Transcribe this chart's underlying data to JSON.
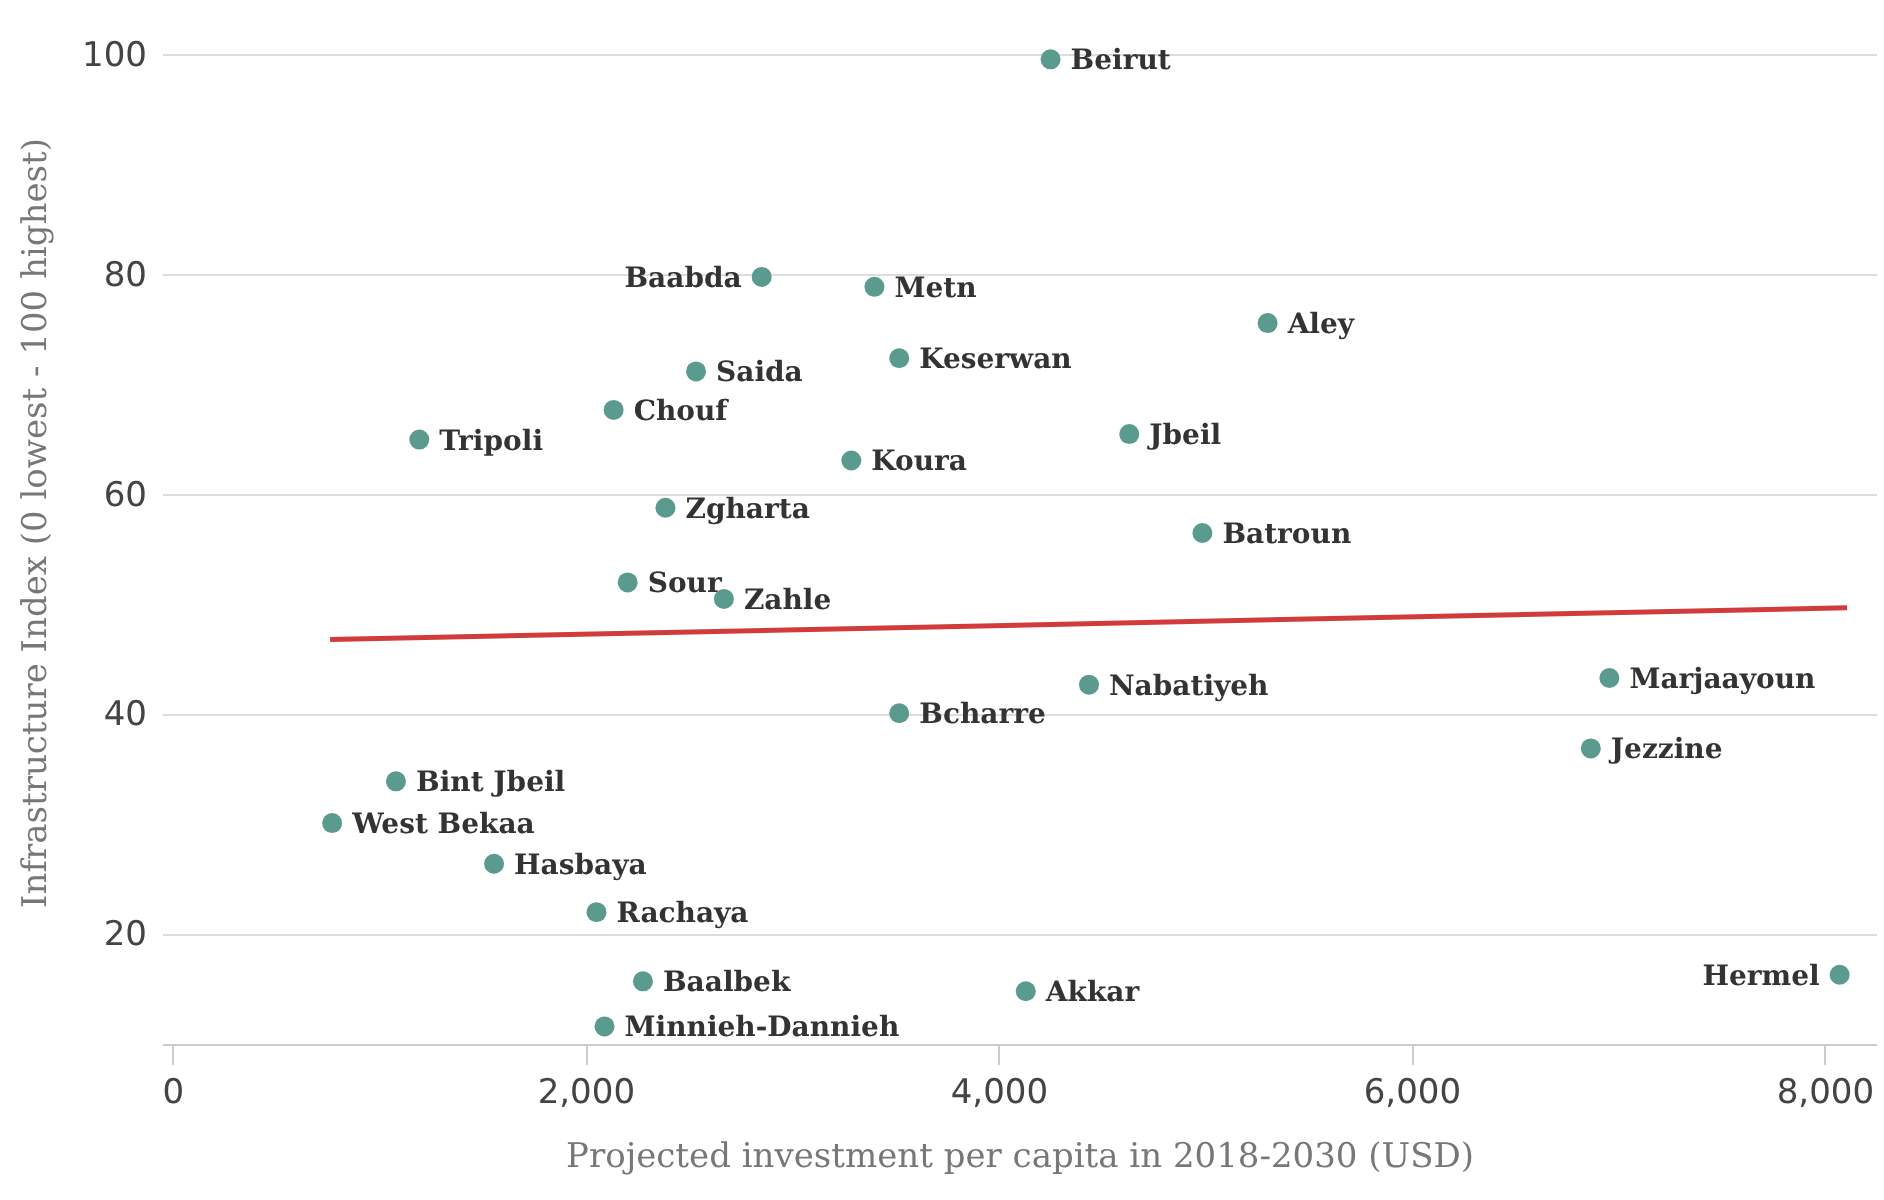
{
  "chart_data": {
    "type": "scatter",
    "xlabel": "Projected investment per capita in 2018-2030 (USD)",
    "ylabel": "Infrastructure Index (0 lowest - 100 highest)",
    "xlim": [
      -50,
      8250
    ],
    "ylim": [
      10,
      105
    ],
    "xticks": [
      0,
      {
        "value": 2000,
        "label": "2,000"
      },
      {
        "value": 4000,
        "label": "4,000"
      },
      {
        "value": 6000,
        "label": "6,000"
      },
      {
        "value": 8000,
        "label": "8,000"
      }
    ],
    "yticks": [
      20,
      40,
      60,
      80,
      100
    ],
    "grid": "y",
    "series": [
      {
        "marker": "circle",
        "color": "#5a9a8f",
        "x": [
          4253,
          2854,
          3400,
          5304,
          2536,
          3520,
          2137,
          1196,
          4634,
          3288,
          2388,
          4988,
          2205,
          2671,
          3520,
          4439,
          6959,
          6869,
          1083,
          774,
          1558,
          2054,
          2279,
          4133,
          8074,
          2093
        ],
        "values": [
          99.6,
          79.8,
          78.9,
          75.6,
          71.2,
          72.4,
          67.7,
          65.0,
          65.5,
          63.1,
          58.8,
          56.5,
          52.0,
          50.5,
          40.1,
          42.7,
          43.3,
          36.9,
          33.9,
          30.1,
          26.4,
          22.0,
          15.7,
          14.8,
          16.3,
          11.6
        ]
      },
      {
        "type": "line",
        "marker": "none",
        "color": "#d13b3b",
        "x": [
          764,
          8110
        ],
        "values": [
          46.8,
          49.7
        ]
      }
    ],
    "annotations": [
      {
        "text": "Beirut",
        "x": 4253,
        "y": 99.6
      },
      {
        "text": "Baabda",
        "x": 2854,
        "y": 79.8
      },
      {
        "text": "Metn",
        "x": 3400,
        "y": 78.9
      },
      {
        "text": "Aley",
        "x": 5304,
        "y": 75.6
      },
      {
        "text": "Saida",
        "x": 2536,
        "y": 71.2
      },
      {
        "text": "Keserwan",
        "x": 3520,
        "y": 72.4
      },
      {
        "text": "Chouf",
        "x": 2137,
        "y": 67.7
      },
      {
        "text": "Tripoli",
        "x": 1196,
        "y": 65.0
      },
      {
        "text": "Jbeil",
        "x": 4634,
        "y": 65.5
      },
      {
        "text": "Koura",
        "x": 3288,
        "y": 63.1
      },
      {
        "text": "Zgharta",
        "x": 2388,
        "y": 58.8
      },
      {
        "text": "Batroun",
        "x": 4988,
        "y": 56.5
      },
      {
        "text": "Sour",
        "x": 2205,
        "y": 52.0
      },
      {
        "text": "Zahle",
        "x": 2671,
        "y": 50.5
      },
      {
        "text": "Bcharre",
        "x": 3520,
        "y": 40.1
      },
      {
        "text": "Nabatiyeh",
        "x": 4439,
        "y": 42.7
      },
      {
        "text": "Marjaayoun",
        "x": 6959,
        "y": 43.3
      },
      {
        "text": "Jezzine",
        "x": 6869,
        "y": 36.9
      },
      {
        "text": "Bint Jbeil",
        "x": 1083,
        "y": 33.9
      },
      {
        "text": "West Bekaa",
        "x": 774,
        "y": 30.1
      },
      {
        "text": "Hasbaya",
        "x": 1558,
        "y": 26.4
      },
      {
        "text": "Rachaya",
        "x": 2054,
        "y": 22.0
      },
      {
        "text": "Baalbek",
        "x": 2279,
        "y": 15.7
      },
      {
        "text": "Akkar",
        "x": 4133,
        "y": 14.8
      },
      {
        "text": "Hermel",
        "x": 8074,
        "y": 16.3
      },
      {
        "text": "Minnieh-Dannieh",
        "x": 2093,
        "y": 11.6
      }
    ]
  }
}
